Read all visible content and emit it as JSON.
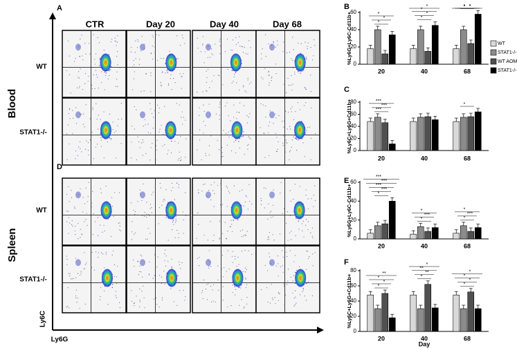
{
  "flow": {
    "letter_top": "A",
    "letter_bottom": "D",
    "columns": [
      "CTR",
      "Day 20",
      "Day 40",
      "Day 68"
    ],
    "rows": [
      "WT",
      "STAT1-/-",
      "WT",
      "STAT1-/-"
    ],
    "groups": [
      "Blood",
      "Spleen"
    ],
    "y_axis": "Ly6C",
    "x_axis": "Ly6G"
  },
  "chart_data": [
    {
      "type": "bar",
      "panel": "B",
      "ylabel": "%Ly6G+Ly6C-Cd11b+",
      "categories": [
        "20",
        "40",
        "68"
      ],
      "ylim": [
        0,
        60
      ],
      "yticks": [
        0,
        20,
        40,
        60
      ],
      "series": [
        {
          "name": "WT",
          "color": "#d9d9d9",
          "values": [
            18,
            18,
            18
          ]
        },
        {
          "name": "STAT1-/-",
          "color": "#8c8c8c",
          "values": [
            40,
            40,
            40
          ]
        },
        {
          "name": "WT AOM/DSS",
          "color": "#505050",
          "values": [
            12,
            15,
            24
          ]
        },
        {
          "name": "STAT1-/- AOM/DSS",
          "color": "#000000",
          "values": [
            34,
            45,
            58
          ]
        }
      ],
      "annotations": [
        [
          "*",
          "*",
          "*"
        ],
        [
          "*",
          "*",
          "*",
          "*"
        ],
        [
          "*",
          "*",
          "*",
          "*"
        ]
      ]
    },
    {
      "type": "bar",
      "panel": "C",
      "ylabel": "%Ly6C+Ly6G+Cd11b+",
      "categories": [
        "20",
        "40",
        "68"
      ],
      "ylim": [
        0,
        80
      ],
      "yticks": [
        0,
        20,
        40,
        60,
        80
      ],
      "series": [
        {
          "color": "#d9d9d9",
          "values": [
            48,
            48,
            48
          ]
        },
        {
          "color": "#8c8c8c",
          "values": [
            55,
            55,
            55
          ]
        },
        {
          "color": "#505050",
          "values": [
            46,
            56,
            56
          ]
        },
        {
          "color": "#000000",
          "values": [
            11,
            51,
            64
          ]
        }
      ],
      "annotations": [
        [
          "***",
          "***",
          "***"
        ],
        [],
        [
          "*"
        ]
      ]
    },
    {
      "type": "bar",
      "panel": "E",
      "ylabel": "%Ly6G+Ly6C-Cd11b+",
      "categories": [
        "20",
        "40",
        "68"
      ],
      "ylim": [
        0,
        60
      ],
      "yticks": [
        0,
        20,
        40,
        60
      ],
      "series": [
        {
          "color": "#d9d9d9",
          "values": [
            6,
            5,
            6
          ]
        },
        {
          "color": "#8c8c8c",
          "values": [
            14,
            13,
            14
          ]
        },
        {
          "color": "#505050",
          "values": [
            16,
            8,
            8
          ]
        },
        {
          "color": "#000000",
          "values": [
            40,
            12,
            12
          ]
        }
      ],
      "annotations": [
        [
          "*",
          "***",
          "***",
          "***",
          "***"
        ],
        [
          "*",
          "***",
          "*"
        ],
        [
          "*",
          "***",
          "*"
        ]
      ]
    },
    {
      "type": "bar",
      "panel": "F",
      "ylabel": "%Ly6C+Ly6G+Cd11b+",
      "xlabel": "Day",
      "categories": [
        "20",
        "40",
        "68"
      ],
      "ylim": [
        0,
        80
      ],
      "yticks": [
        0,
        20,
        40,
        60,
        80
      ],
      "series": [
        {
          "color": "#d9d9d9",
          "values": [
            48,
            48,
            48
          ]
        },
        {
          "color": "#8c8c8c",
          "values": [
            30,
            30,
            30
          ]
        },
        {
          "color": "#505050",
          "values": [
            50,
            62,
            52
          ]
        },
        {
          "color": "#000000",
          "values": [
            18,
            31,
            30
          ]
        }
      ],
      "annotations": [
        [
          "*",
          "*",
          "*",
          "**"
        ],
        [
          "*",
          "**",
          "**",
          "*"
        ],
        [
          "*",
          "*",
          "*",
          "*"
        ]
      ]
    }
  ]
}
